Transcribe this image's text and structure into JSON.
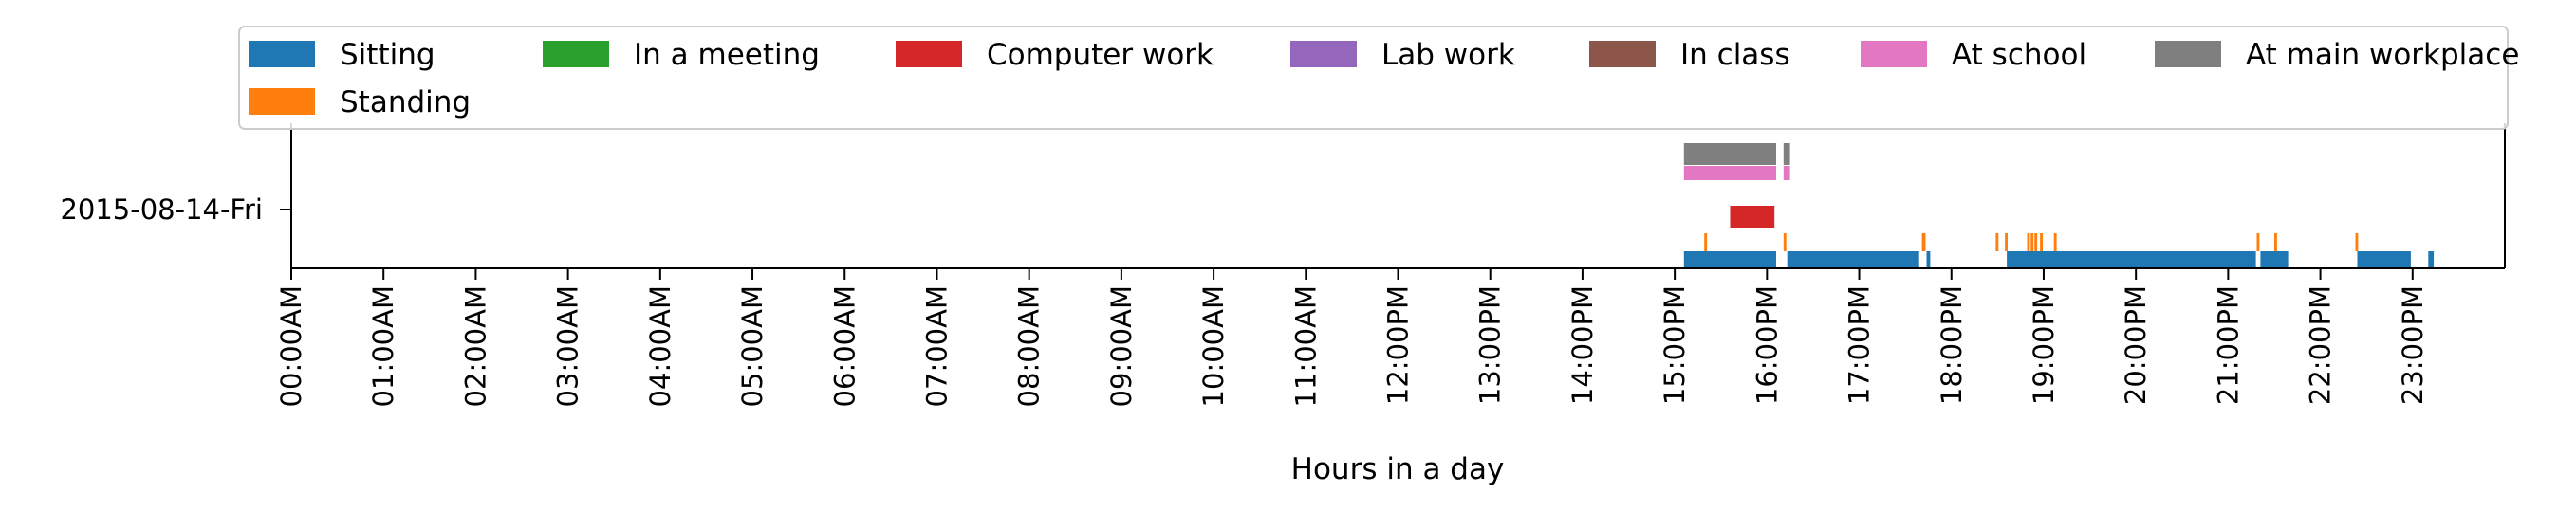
{
  "chart_data": {
    "type": "timeline",
    "xlabel": "Hours in a day",
    "xlim": [
      0,
      24
    ],
    "x_tick_labels": [
      "00:00AM",
      "01:00AM",
      "02:00AM",
      "03:00AM",
      "04:00AM",
      "05:00AM",
      "06:00AM",
      "07:00AM",
      "08:00AM",
      "09:00AM",
      "10:00AM",
      "11:00AM",
      "12:00PM",
      "13:00PM",
      "14:00PM",
      "15:00PM",
      "16:00PM",
      "17:00PM",
      "18:00PM",
      "19:00PM",
      "20:00PM",
      "21:00PM",
      "22:00PM",
      "23:00PM"
    ],
    "categories": [
      "2015-08-14-Fri"
    ],
    "legend": {
      "placement": "top",
      "entries": [
        {
          "name": "Sitting",
          "color": "#1f77b4"
        },
        {
          "name": "In a meeting",
          "color": "#2ca02c"
        },
        {
          "name": "Computer work",
          "color": "#d62728"
        },
        {
          "name": "Lab work",
          "color": "#9467bd"
        },
        {
          "name": "In class",
          "color": "#8c564b"
        },
        {
          "name": "At school",
          "color": "#e377c2"
        },
        {
          "name": "At main workplace",
          "color": "#7f7f7f"
        },
        {
          "name": "Standing",
          "color": "#ff7f0e"
        }
      ]
    },
    "series": [
      {
        "name": "Sitting",
        "color": "#1f77b4",
        "intervals": [
          [
            15.1,
            16.1
          ],
          [
            16.22,
            17.65
          ],
          [
            17.73,
            17.77
          ],
          [
            18.6,
            21.3
          ],
          [
            21.35,
            21.65
          ],
          [
            22.4,
            22.98
          ],
          [
            23.17,
            23.23
          ]
        ]
      },
      {
        "name": "Standing",
        "color": "#ff7f0e",
        "intervals": [
          [
            15.32,
            15.35
          ],
          [
            16.18,
            16.21
          ],
          [
            17.68,
            17.72
          ],
          [
            18.48,
            18.51
          ],
          [
            18.58,
            18.61
          ],
          [
            18.82,
            18.85
          ],
          [
            18.86,
            18.89
          ],
          [
            18.9,
            18.93
          ],
          [
            18.96,
            18.99
          ],
          [
            19.11,
            19.14
          ],
          [
            21.31,
            21.34
          ],
          [
            21.5,
            21.53
          ],
          [
            22.38,
            22.41
          ]
        ]
      },
      {
        "name": "Computer work",
        "color": "#d62728",
        "intervals": [
          [
            15.6,
            16.08
          ]
        ]
      },
      {
        "name": "At school",
        "color": "#e377c2",
        "intervals": [
          [
            15.1,
            16.1
          ],
          [
            16.18,
            16.25
          ]
        ]
      },
      {
        "name": "At main workplace",
        "color": "#7f7f7f",
        "intervals": [
          [
            15.1,
            16.1
          ],
          [
            16.18,
            16.25
          ]
        ]
      }
    ]
  }
}
